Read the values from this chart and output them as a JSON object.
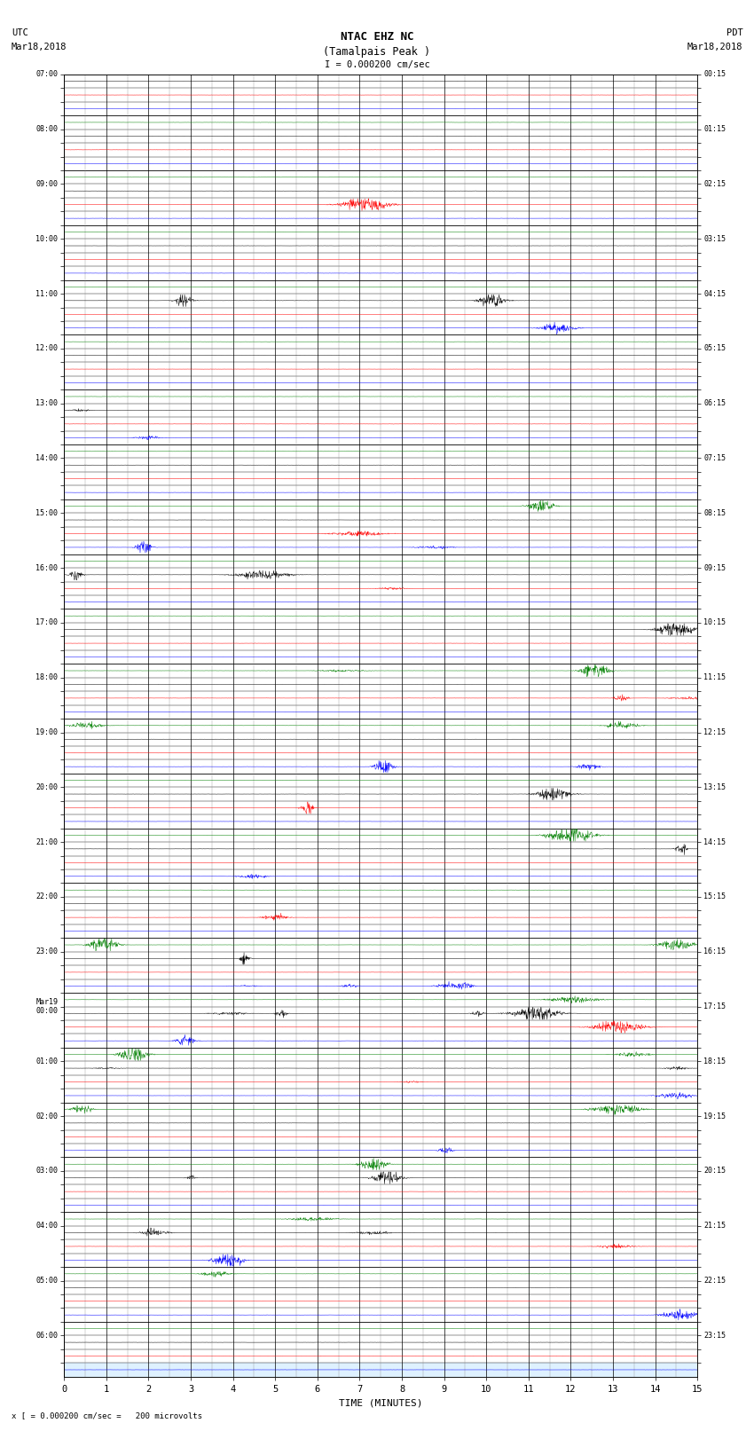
{
  "title_line1": "NTAC EHZ NC",
  "title_line2": "(Tamalpais Peak )",
  "title_line3": "I = 0.000200 cm/sec",
  "left_header_line1": "UTC",
  "left_header_line2": "Mar18,2018",
  "right_header_line1": "PDT",
  "right_header_line2": "Mar18,2018",
  "footer": "x [ = 0.000200 cm/sec =   200 microvolts",
  "xlabel": "TIME (MINUTES)",
  "utc_labels": [
    "07:00",
    "",
    "",
    "",
    "08:00",
    "",
    "",
    "",
    "09:00",
    "",
    "",
    "",
    "10:00",
    "",
    "",
    "",
    "11:00",
    "",
    "",
    "",
    "12:00",
    "",
    "",
    "",
    "13:00",
    "",
    "",
    "",
    "14:00",
    "",
    "",
    "",
    "15:00",
    "",
    "",
    "",
    "16:00",
    "",
    "",
    "",
    "17:00",
    "",
    "",
    "",
    "18:00",
    "",
    "",
    "",
    "19:00",
    "",
    "",
    "",
    "20:00",
    "",
    "",
    "",
    "21:00",
    "",
    "",
    "",
    "22:00",
    "",
    "",
    "",
    "23:00",
    "",
    "",
    "",
    "Mar19\n00:00",
    "",
    "",
    "",
    "01:00",
    "",
    "",
    "",
    "02:00",
    "",
    "",
    "",
    "03:00",
    "",
    "",
    "",
    "04:00",
    "",
    "",
    "",
    "05:00",
    "",
    "",
    "",
    "06:00",
    "",
    ""
  ],
  "pdt_labels": [
    "00:15",
    "",
    "",
    "",
    "01:15",
    "",
    "",
    "",
    "02:15",
    "",
    "",
    "",
    "03:15",
    "",
    "",
    "",
    "04:15",
    "",
    "",
    "",
    "05:15",
    "",
    "",
    "",
    "06:15",
    "",
    "",
    "",
    "07:15",
    "",
    "",
    "",
    "08:15",
    "",
    "",
    "",
    "09:15",
    "",
    "",
    "",
    "10:15",
    "",
    "",
    "",
    "11:15",
    "",
    "",
    "",
    "12:15",
    "",
    "",
    "",
    "13:15",
    "",
    "",
    "",
    "14:15",
    "",
    "",
    "",
    "15:15",
    "",
    "",
    "",
    "16:15",
    "",
    "",
    "",
    "17:15",
    "",
    "",
    "",
    "18:15",
    "",
    "",
    "",
    "19:15",
    "",
    "",
    "",
    "20:15",
    "",
    "",
    "",
    "21:15",
    "",
    "",
    "",
    "22:15",
    "",
    "",
    "",
    "23:15",
    "",
    ""
  ],
  "num_rows": 95,
  "xmin": 0,
  "xmax": 15,
  "bg_color": "#ffffff",
  "trace_colors_cycle": [
    "#000000",
    "#ff0000",
    "#0000ff",
    "#008000"
  ],
  "last_row_color": "#aaddff",
  "figsize": [
    8.5,
    16.13
  ],
  "dpi": 100
}
